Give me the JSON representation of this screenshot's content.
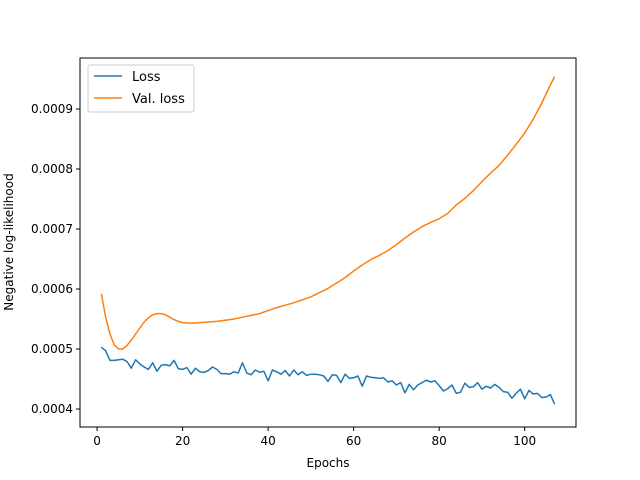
{
  "chart_data": {
    "type": "line",
    "title": "",
    "xlabel": "Epochs",
    "ylabel": "Negative log-likelihood",
    "xlim": [
      -4,
      112
    ],
    "ylim": [
      0.00037,
      0.000985
    ],
    "xticks": [
      0,
      20,
      40,
      60,
      80,
      100
    ],
    "yticks": [
      0.0004,
      0.0005,
      0.0006,
      0.0007,
      0.0008,
      0.0009
    ],
    "ytick_labels": [
      "0.0004",
      "0.0005",
      "0.0006",
      "0.0007",
      "0.0008",
      "0.0009"
    ],
    "grid": false,
    "legend_position": "top-left",
    "series": [
      {
        "name": "Loss",
        "color": "#1f77b4",
        "x": [
          1,
          2,
          3,
          4,
          5,
          6,
          7,
          8,
          9,
          10,
          11,
          12,
          13,
          14,
          15,
          16,
          17,
          18,
          19,
          20,
          21,
          22,
          23,
          24,
          25,
          26,
          27,
          28,
          29,
          30,
          31,
          32,
          33,
          34,
          35,
          36,
          37,
          38,
          39,
          40,
          41,
          42,
          43,
          44,
          45,
          46,
          47,
          48,
          49,
          50,
          51,
          52,
          53,
          54,
          55,
          56,
          57,
          58,
          59,
          60,
          61,
          62,
          63,
          64,
          65,
          66,
          67,
          68,
          69,
          70,
          71,
          72,
          73,
          74,
          75,
          76,
          77,
          78,
          79,
          80,
          81,
          82,
          83,
          84,
          85,
          86,
          87,
          88,
          89,
          90,
          91,
          92,
          93,
          94,
          95,
          96,
          97,
          98,
          99,
          100,
          101,
          102,
          103,
          104,
          105,
          106,
          107
        ],
        "y": [
          0.000503,
          0.000497,
          0.000481,
          0.000481,
          0.000482,
          0.000483,
          0.000479,
          0.000468,
          0.000482,
          0.000475,
          0.00047,
          0.000466,
          0.000477,
          0.000463,
          0.000473,
          0.000474,
          0.000472,
          0.000481,
          0.000467,
          0.000466,
          0.000469,
          0.000458,
          0.000468,
          0.000462,
          0.000461,
          0.000464,
          0.00047,
          0.000466,
          0.000459,
          0.000459,
          0.000458,
          0.000462,
          0.00046,
          0.000477,
          0.00046,
          0.000457,
          0.000465,
          0.000461,
          0.000463,
          0.000447,
          0.000465,
          0.000462,
          0.000458,
          0.000464,
          0.000455,
          0.000465,
          0.000457,
          0.000462,
          0.000456,
          0.000458,
          0.000458,
          0.000457,
          0.000455,
          0.000446,
          0.000457,
          0.000456,
          0.000444,
          0.000458,
          0.000451,
          0.000452,
          0.000455,
          0.000438,
          0.000455,
          0.000453,
          0.000452,
          0.000451,
          0.000452,
          0.000445,
          0.000447,
          0.00044,
          0.000444,
          0.000427,
          0.000441,
          0.000432,
          0.00044,
          0.000444,
          0.000448,
          0.000445,
          0.000447,
          0.000439,
          0.00043,
          0.000434,
          0.00044,
          0.000426,
          0.000428,
          0.000443,
          0.000436,
          0.000437,
          0.000444,
          0.000433,
          0.000438,
          0.000435,
          0.000441,
          0.000436,
          0.000429,
          0.000428,
          0.000418,
          0.000426,
          0.000433,
          0.000417,
          0.000431,
          0.000425,
          0.000426,
          0.000419,
          0.00042,
          0.000424,
          0.000408
        ]
      },
      {
        "name": "Val. loss",
        "color": "#ff7f0e",
        "x": [
          1,
          2,
          3,
          4,
          5,
          6,
          7,
          8,
          9,
          10,
          11,
          12,
          13,
          14,
          15,
          16,
          17,
          18,
          19,
          20,
          22,
          24,
          26,
          28,
          30,
          32,
          34,
          36,
          38,
          40,
          42,
          44,
          46,
          48,
          50,
          52,
          54,
          56,
          58,
          60,
          62,
          64,
          66,
          68,
          70,
          72,
          74,
          76,
          78,
          80,
          82,
          84,
          86,
          88,
          90,
          92,
          94,
          96,
          98,
          100,
          102,
          104,
          106,
          107
        ],
        "y": [
          0.000592,
          0.000553,
          0.000525,
          0.000507,
          0.0005,
          0.0005,
          0.000506,
          0.000515,
          0.000525,
          0.000535,
          0.000545,
          0.000552,
          0.000557,
          0.000559,
          0.000559,
          0.000557,
          0.000553,
          0.000549,
          0.000546,
          0.000544,
          0.000543,
          0.000544,
          0.000545,
          0.000546,
          0.000548,
          0.00055,
          0.000553,
          0.000556,
          0.000559,
          0.000564,
          0.000569,
          0.000573,
          0.000577,
          0.000582,
          0.000587,
          0.000594,
          0.000601,
          0.00061,
          0.000619,
          0.00063,
          0.00064,
          0.000649,
          0.000656,
          0.000664,
          0.000674,
          0.000685,
          0.000695,
          0.000704,
          0.000711,
          0.000717,
          0.000726,
          0.00074,
          0.000751,
          0.000764,
          0.000779,
          0.000793,
          0.000806,
          0.000823,
          0.000841,
          0.00086,
          0.000883,
          0.00091,
          0.00094,
          0.000954
        ]
      }
    ]
  }
}
